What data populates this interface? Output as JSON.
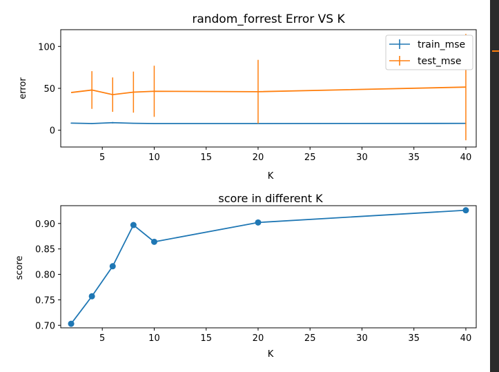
{
  "chart_data": [
    {
      "type": "line",
      "title": "random_forrest Error VS K",
      "xlabel": "K",
      "ylabel": "error",
      "xlim": [
        1,
        41
      ],
      "ylim": [
        -20,
        120
      ],
      "xticks": [
        5,
        10,
        15,
        20,
        25,
        30,
        35,
        40
      ],
      "yticks": [
        0,
        50,
        100
      ],
      "legend": "top-right",
      "series": [
        {
          "name": "train_mse",
          "color": "#1f77b4",
          "x": [
            2,
            4,
            6,
            8,
            10,
            20,
            40
          ],
          "y": [
            8.5,
            8.0,
            9.0,
            8.3,
            8.0,
            8.0,
            8.2
          ],
          "err": [
            0.5,
            0.5,
            0.8,
            0.5,
            0.3,
            0.3,
            0.3
          ]
        },
        {
          "name": "test_mse",
          "color": "#ff7f0e",
          "x": [
            2,
            4,
            6,
            8,
            10,
            20,
            40
          ],
          "y": [
            45,
            48,
            42.5,
            45.5,
            46.5,
            46,
            51.5
          ],
          "err": [
            0,
            22.5,
            20.5,
            24.5,
            30.5,
            38,
            63.5
          ]
        }
      ]
    },
    {
      "type": "line",
      "title": "score in different K",
      "xlabel": "K",
      "ylabel": "score",
      "xlim": [
        1,
        41
      ],
      "ylim": [
        0.695,
        0.935
      ],
      "xticks": [
        5,
        10,
        15,
        20,
        25,
        30,
        35,
        40
      ],
      "yticks": [
        0.7,
        0.75,
        0.8,
        0.85,
        0.9
      ],
      "ytick_labels": [
        "0.70",
        "0.75",
        "0.80",
        "0.85",
        "0.90"
      ],
      "series": [
        {
          "color": "#1f77b4",
          "x": [
            2,
            4,
            6,
            8,
            10,
            20,
            40
          ],
          "y": [
            0.703,
            0.757,
            0.816,
            0.897,
            0.864,
            0.902,
            0.926
          ]
        }
      ]
    }
  ]
}
